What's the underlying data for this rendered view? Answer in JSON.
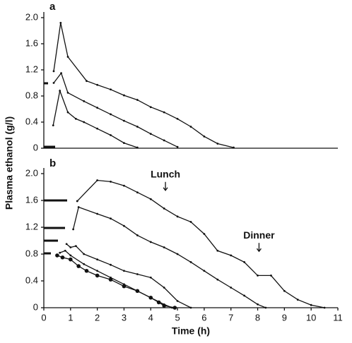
{
  "chart_data": [
    {
      "type": "line",
      "panel_label": "a",
      "ylabel": "Plasma ethanol (g/l)",
      "xlim": [
        0,
        11
      ],
      "ylim": [
        0,
        2
      ],
      "yticks": [
        0,
        0.4,
        0.8,
        1.2,
        1.6,
        {
          "value": 2,
          "label": "2.0"
        }
      ],
      "series": [
        {
          "color": "#111111",
          "marker": "dot",
          "x": [
            0.37,
            0.63,
            0.9,
            1.6,
            2,
            2.5,
            3,
            3.5,
            4,
            4.5,
            5,
            5.5,
            6,
            6.5,
            7.1
          ],
          "values": [
            1.18,
            1.92,
            1.4,
            1.03,
            0.97,
            0.9,
            0.81,
            0.74,
            0.63,
            0.55,
            0.45,
            0.33,
            0.18,
            0.07,
            0.01
          ]
        },
        {
          "color": "#111111",
          "marker": "dot",
          "x": [
            0.37,
            0.65,
            0.9,
            1.5,
            2,
            2.5,
            3,
            3.5,
            4,
            4.5,
            5
          ],
          "values": [
            1.0,
            1.15,
            0.85,
            0.72,
            0.62,
            0.52,
            0.42,
            0.33,
            0.22,
            0.12,
            0.02
          ]
        },
        {
          "color": "#111111",
          "marker": "dot",
          "x": [
            0.35,
            0.6,
            0.9,
            1.2,
            1.5,
            2,
            2.5,
            3,
            3.5
          ],
          "values": [
            0.35,
            0.88,
            0.55,
            0.45,
            0.4,
            0.3,
            0.2,
            0.08,
            0.01
          ]
        }
      ]
    },
    {
      "type": "line",
      "panel_label": "b",
      "xlabel": "Time (h)",
      "xlim": [
        0,
        11
      ],
      "ylim": [
        0,
        2
      ],
      "xticks": [
        0,
        1,
        2,
        3,
        4,
        5,
        6,
        7,
        8,
        9,
        10,
        11
      ],
      "yticks": [
        0,
        0.4,
        0.8,
        1.2,
        1.6,
        {
          "value": 2,
          "label": "2.0"
        }
      ],
      "annotations": [
        {
          "text": "Lunch",
          "x": 4.55,
          "y": 1.75
        },
        {
          "text": "Dinner",
          "x": 8.05,
          "y": 0.84
        }
      ],
      "series": [
        {
          "color": "#111111",
          "marker": "dot",
          "x": [
            1.25,
            2,
            2.5,
            3,
            3.5,
            4,
            4.5,
            5,
            5.5,
            6,
            6.5,
            7,
            7.5,
            8,
            8.5,
            9,
            9.5,
            10,
            10.5
          ],
          "values": [
            1.59,
            1.9,
            1.88,
            1.82,
            1.72,
            1.62,
            1.48,
            1.36,
            1.28,
            1.1,
            0.85,
            0.78,
            0.68,
            0.48,
            0.48,
            0.25,
            0.12,
            0.04,
            0.0
          ]
        },
        {
          "color": "#111111",
          "marker": "dot",
          "x": [
            1.1,
            1.3,
            2,
            2.5,
            3,
            3.5,
            4,
            4.5,
            5,
            5.5,
            6,
            6.5,
            7,
            7.5,
            8,
            8.3
          ],
          "values": [
            1.17,
            1.5,
            1.4,
            1.33,
            1.22,
            1.08,
            0.98,
            0.9,
            0.8,
            0.68,
            0.55,
            0.42,
            0.3,
            0.18,
            0.05,
            0.0
          ]
        },
        {
          "color": "#111111",
          "marker": "dot",
          "x": [
            0.85,
            1,
            1.2,
            1.5,
            2,
            2.5,
            3,
            3.5,
            4,
            4.5,
            5,
            5.5
          ],
          "values": [
            0.95,
            0.9,
            0.92,
            0.8,
            0.72,
            0.64,
            0.55,
            0.5,
            0.45,
            0.3,
            0.1,
            0.0
          ]
        },
        {
          "color": "#111111",
          "marker": "dot",
          "x": [
            0.6,
            0.8,
            1,
            1.5,
            2,
            2.5,
            3,
            3.5,
            4,
            4.5,
            4.8
          ],
          "values": [
            0.82,
            0.85,
            0.78,
            0.65,
            0.55,
            0.45,
            0.35,
            0.25,
            0.15,
            0.05,
            0.0
          ]
        },
        {
          "color": "#111111",
          "marker": "large-dot",
          "x": [
            0.5,
            0.7,
            1,
            1.3,
            1.6,
            2,
            2.5,
            3,
            3.5,
            4,
            4.3,
            4.5,
            4.9
          ],
          "values": [
            0.78,
            0.75,
            0.72,
            0.62,
            0.55,
            0.48,
            0.42,
            0.32,
            0.25,
            0.15,
            0.08,
            0.03,
            0.0
          ]
        }
      ]
    }
  ]
}
